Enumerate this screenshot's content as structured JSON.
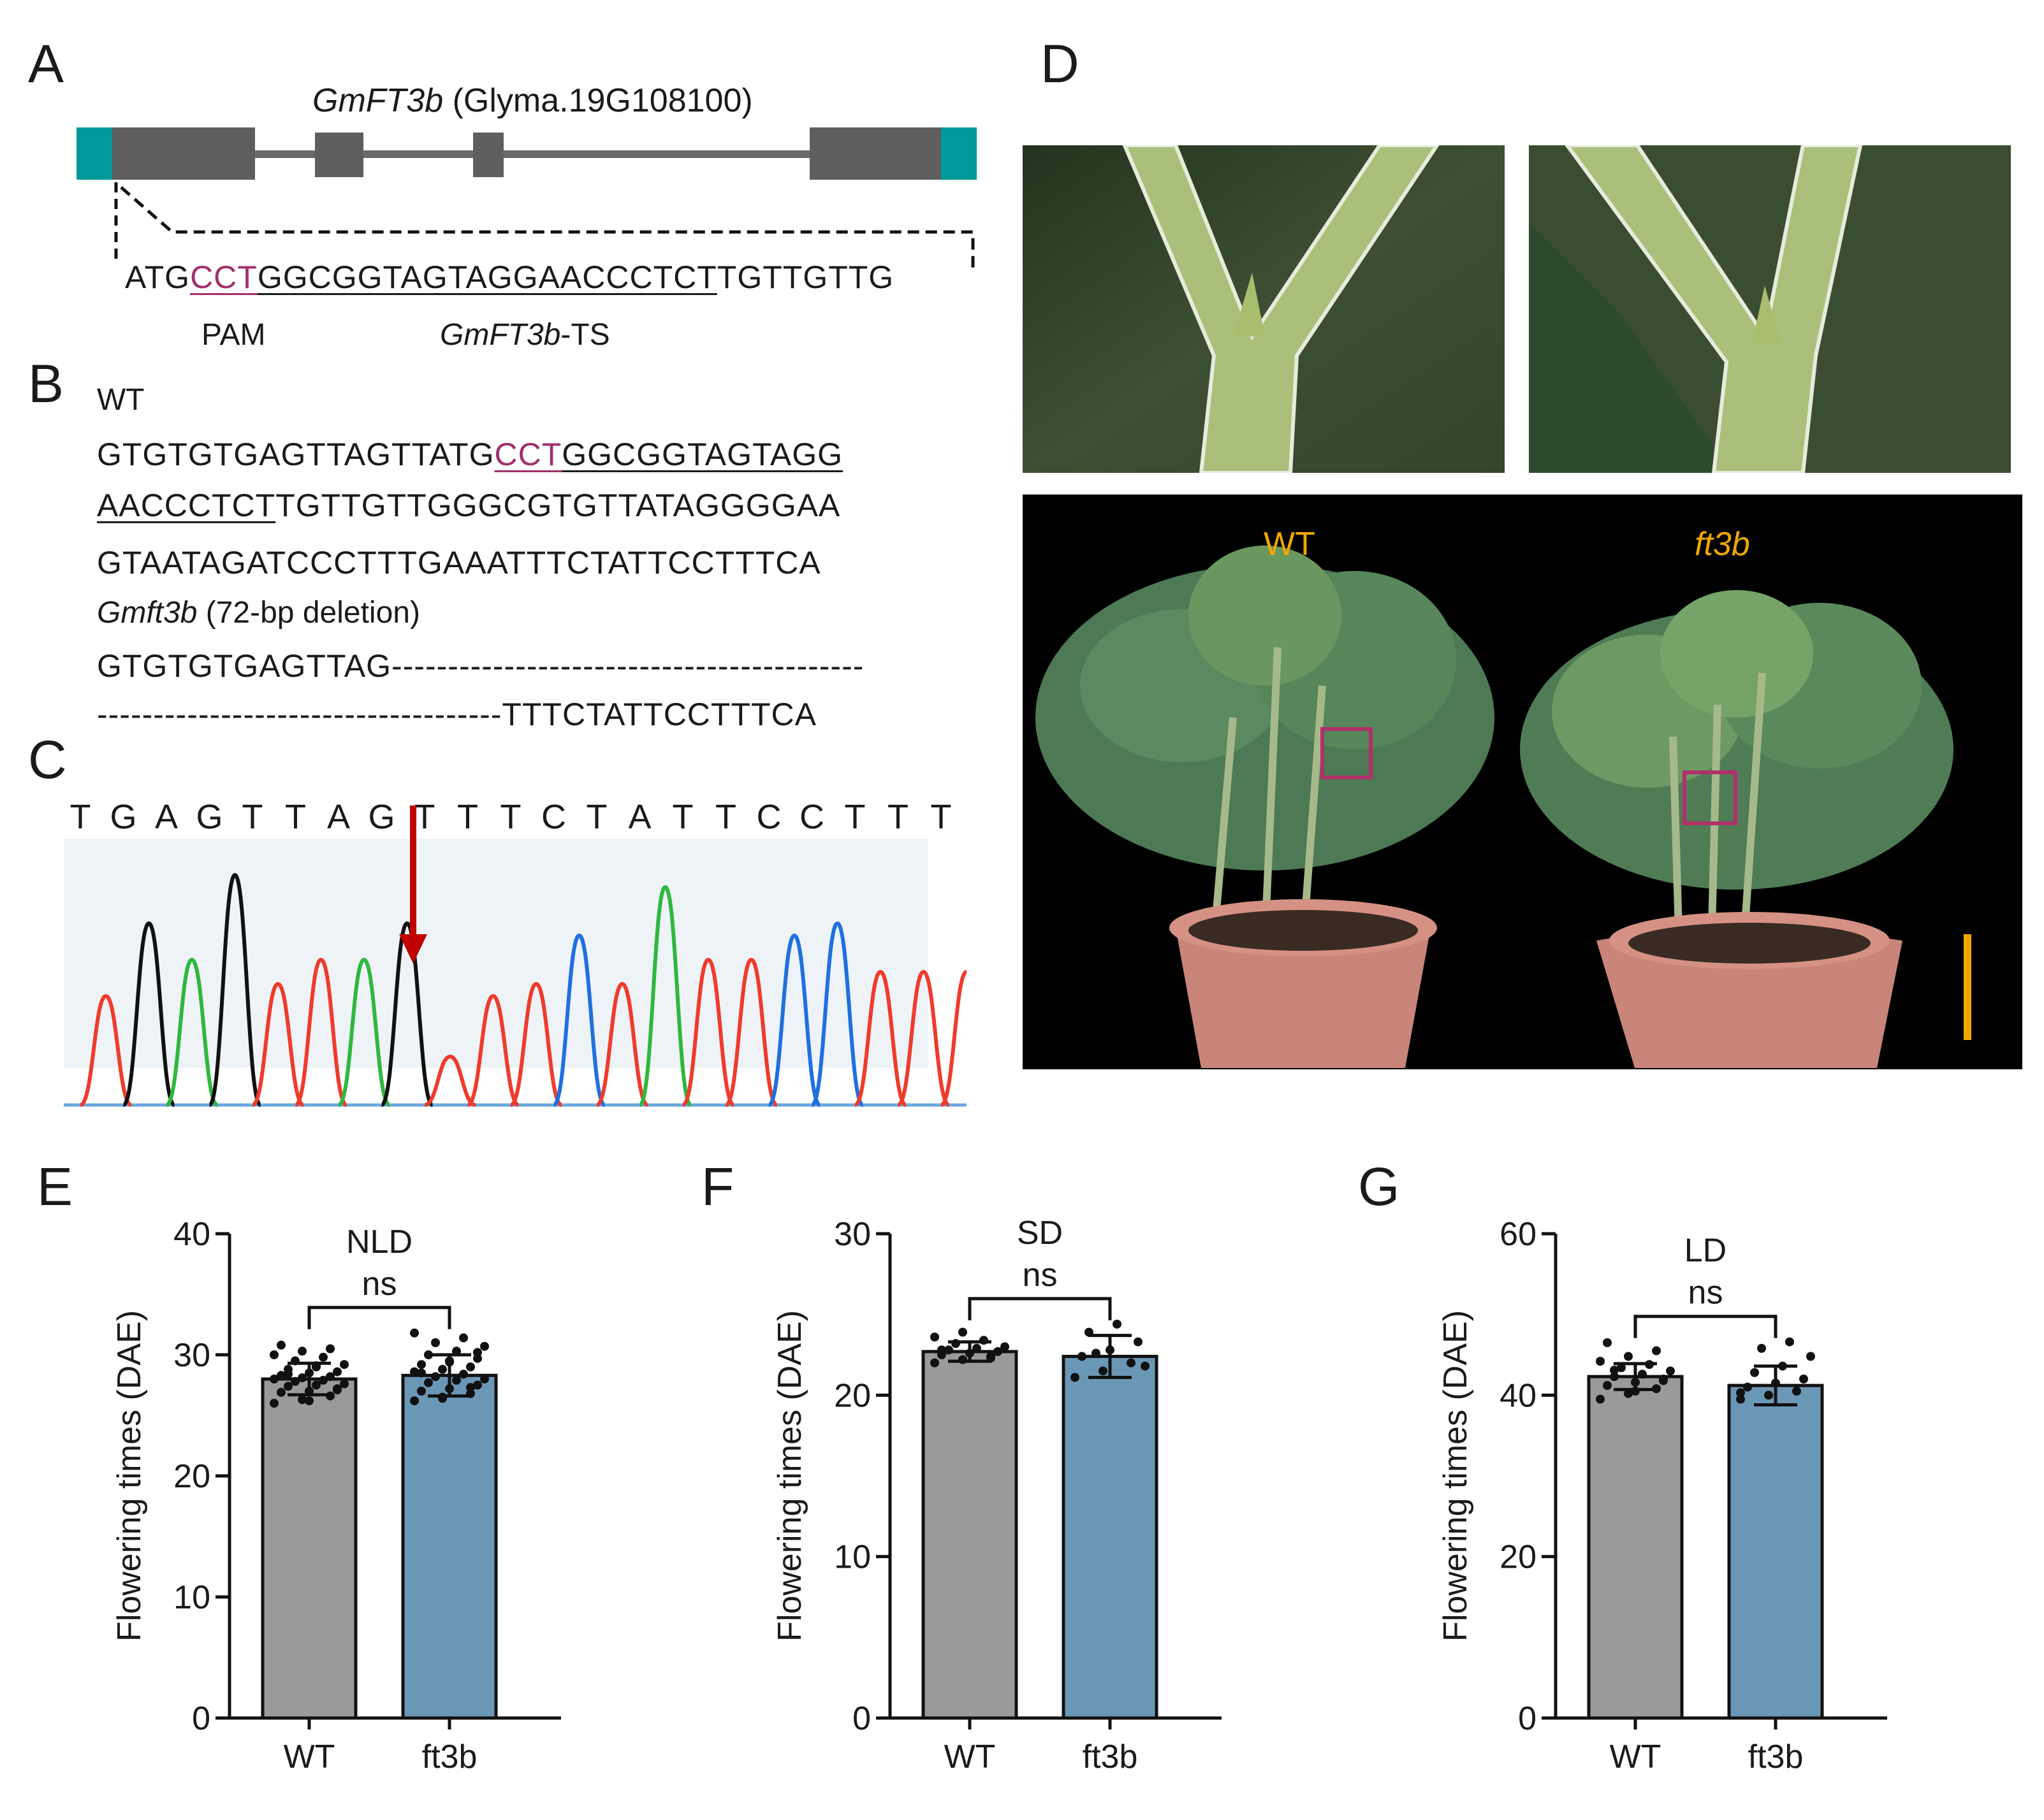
{
  "panels": {
    "A": "A",
    "B": "B",
    "C": "C",
    "D": "D",
    "E": "E",
    "F": "F",
    "G": "G"
  },
  "panelA": {
    "gene_title_italic": "GmFT3b",
    "gene_title_rest": " (Glyma.19G108100)",
    "seq_prefix": "ATG",
    "seq_pam": "CCT",
    "seq_target": "GGCGGTAGTAGGAACCCTCT",
    "seq_suffix": "TGTTGTTG",
    "pam_label": "PAM",
    "ts_label_italic": "GmFT3b",
    "ts_label_rest": "-TS",
    "colors": {
      "exon": "#5e5e5e",
      "utr": "#009a9a",
      "pam": "#a0306a"
    }
  },
  "panelB": {
    "wt_label": "WT",
    "wt_line1_pre": "GTGTGTGAGTTAGTTATG",
    "wt_line1_pam": "CCT",
    "wt_line1_target": "GGCGGTAGTAGG",
    "wt_line2_target": "AACCCTCT",
    "wt_line2_rest": "TGTTGTTGGGCGTGTTATAGGGGAA",
    "wt_line3": "GTAATAGATCCCTTTGAAATTTCTATTCCTTTCA",
    "mut_label_italic": "Gmft3b",
    "mut_label_rest": " (72-bp deletion)",
    "mut_line1": "GTGTGTGAGTTAG------------------------------------------",
    "mut_line2": "------------------------------------TTTCTATTCCTTTCA"
  },
  "panelC": {
    "bases": [
      "T",
      "G",
      "A",
      "G",
      "T",
      "T",
      "A",
      "G",
      "T",
      "T",
      "T",
      "C",
      "T",
      "A",
      "T",
      "T",
      "C",
      "C",
      "T",
      "T",
      "T"
    ],
    "colors": {
      "T": "#ef3b2c",
      "G": "#111111",
      "A": "#2db83d",
      "C": "#1f6fe0",
      "arrow": "#c00000"
    }
  },
  "panelD": {
    "wt_label": "WT",
    "mut_label": "ft3b",
    "label_color": "#f0a800",
    "box_color": "#b0306a",
    "scale_bar_color": "#f0a800"
  },
  "chart_data": [
    {
      "type": "bar",
      "panel": "E",
      "title": "NLD",
      "significance": "ns",
      "categories": [
        "WT",
        "ft3b"
      ],
      "values": [
        28.0,
        28.3
      ],
      "errors": [
        1.3,
        1.7
      ],
      "points": [
        [
          26.0,
          26.3,
          26.6,
          26.9,
          27.0,
          27.2,
          27.4,
          27.5,
          27.6,
          27.8,
          27.9,
          28.0,
          28.1,
          28.2,
          28.3,
          28.5,
          28.6,
          28.8,
          29.0,
          29.2,
          29.5,
          29.8,
          30.0,
          30.3,
          30.5,
          30.8,
          26.2,
          27.1,
          28.4,
          29.1
        ],
        [
          26.2,
          26.5,
          26.8,
          27.0,
          27.2,
          27.5,
          27.7,
          27.9,
          28.0,
          28.2,
          28.4,
          28.6,
          28.8,
          29.0,
          29.2,
          29.4,
          29.7,
          30.0,
          30.3,
          30.7,
          31.0,
          31.4,
          31.8,
          26.4,
          27.3,
          28.5,
          29.5,
          30.2
        ]
      ],
      "ylabel": "Flowering times (DAE)",
      "yticks": [
        0,
        10,
        20,
        30,
        40
      ],
      "ylim": [
        0,
        40
      ],
      "colors": [
        "#9a9a9a",
        "#6b97b7"
      ]
    },
    {
      "type": "bar",
      "panel": "F",
      "title": "SD",
      "significance": "ns",
      "categories": [
        "WT",
        "ft3b"
      ],
      "values": [
        22.7,
        22.4
      ],
      "errors": [
        0.6,
        1.3
      ],
      "points": [
        [
          22.0,
          22.2,
          22.4,
          22.5,
          22.6,
          22.7,
          22.8,
          22.9,
          23.0,
          23.2,
          23.4,
          23.6,
          23.9,
          22.3,
          22.8
        ],
        [
          21.1,
          21.5,
          22.0,
          22.4,
          22.8,
          23.3,
          23.9,
          24.4,
          21.8,
          22.6
        ]
      ],
      "ylabel": "Flowering times (DAE)",
      "yticks": [
        0,
        10,
        20,
        30
      ],
      "ylim": [
        0,
        30
      ],
      "colors": [
        "#9a9a9a",
        "#6b97b7"
      ]
    },
    {
      "type": "bar",
      "panel": "G",
      "title": "LD",
      "significance": "ns",
      "categories": [
        "WT",
        "ft3b"
      ],
      "values": [
        42.3,
        41.2
      ],
      "errors": [
        1.6,
        2.4
      ],
      "points": [
        [
          39.5,
          40.2,
          40.8,
          41.2,
          41.6,
          42.0,
          42.3,
          42.6,
          43.0,
          43.4,
          43.8,
          44.2,
          44.8,
          45.5,
          46.5,
          40.5,
          41.8,
          43.1
        ],
        [
          39.5,
          40.0,
          40.5,
          41.0,
          41.5,
          42.0,
          42.8,
          43.6,
          44.8,
          45.8,
          46.6,
          40.3
        ]
      ],
      "ylabel": "Flowering times (DAE)",
      "yticks": [
        0,
        20,
        40,
        60
      ],
      "ylim": [
        0,
        60
      ],
      "colors": [
        "#9a9a9a",
        "#6b97b7"
      ]
    }
  ]
}
